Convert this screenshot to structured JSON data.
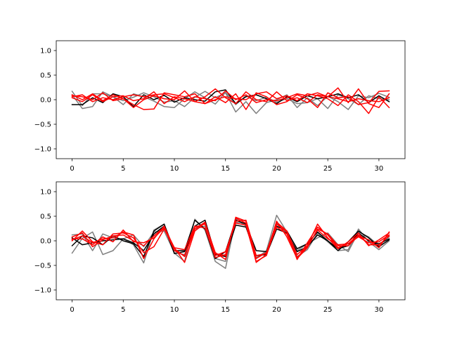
{
  "chart_data": [
    {
      "type": "line",
      "title": "",
      "xlabel": "",
      "ylabel": "",
      "xlim": [
        -1.55,
        32.55
      ],
      "ylim": [
        -1.2,
        1.2
      ],
      "xticks": [
        "0",
        "5",
        "10",
        "15",
        "20",
        "25",
        "30"
      ],
      "yticks": [
        "1.0",
        "0.5",
        "0.0",
        "−0.5",
        "−1.0"
      ],
      "grid": false,
      "legend": "none",
      "x": [
        0,
        1,
        2,
        3,
        4,
        5,
        6,
        7,
        8,
        9,
        10,
        11,
        12,
        13,
        14,
        15,
        16,
        17,
        18,
        19,
        20,
        21,
        22,
        23,
        24,
        25,
        26,
        27,
        28,
        29,
        30,
        31
      ],
      "series": [
        {
          "color": "#7f7f7f",
          "values": [
            0.17,
            -0.12,
            0.12,
            0.12,
            0.06,
            -0.02,
            0.05,
            0.14,
            0.06,
            -0.05,
            -0.02,
            -0.14,
            0.05,
            0.17,
            0.04,
            0.14,
            -0.25,
            -0.04,
            -0.28,
            -0.06,
            0.0,
            0.1,
            -0.16,
            0.04,
            -0.12,
            0.07,
            -0.04,
            -0.2,
            0.08,
            0.04,
            0.13,
            0.05
          ]
        },
        {
          "color": "#7f7f7f",
          "values": [
            0.1,
            -0.18,
            -0.14,
            0.16,
            0.06,
            -0.1,
            0.12,
            0.06,
            -0.03,
            -0.14,
            -0.16,
            0.02,
            0.16,
            0.04,
            -0.09,
            0.15,
            -0.1,
            0.08,
            -0.02,
            0.05,
            -0.05,
            0.02,
            -0.08,
            -0.06,
            0.02,
            -0.18,
            0.1,
            0.02,
            -0.1,
            0.08,
            0.02,
            0.0
          ]
        },
        {
          "color": "#000000",
          "values": [
            -0.1,
            -0.1,
            0.04,
            -0.06,
            0.12,
            0.06,
            -0.14,
            0.1,
            0.0,
            0.09,
            -0.05,
            0.04,
            0.0,
            -0.03,
            0.16,
            0.2,
            -0.08,
            0.06,
            0.1,
            0.02,
            -0.08,
            0.06,
            -0.04,
            0.08,
            0.02,
            0.06,
            0.12,
            0.04,
            0.1,
            -0.06,
            0.08,
            -0.04
          ]
        },
        {
          "color": "#ff0000",
          "values": [
            0.08,
            0.06,
            0.0,
            0.14,
            -0.02,
            0.02,
            -0.1,
            -0.2,
            -0.19,
            0.14,
            0.1,
            0.06,
            0.12,
            -0.08,
            0.06,
            -0.06,
            0.12,
            -0.2,
            0.14,
            0.06,
            -0.1,
            -0.04,
            0.1,
            0.02,
            -0.16,
            0.14,
            0.04,
            0.06,
            -0.1,
            -0.06,
            0.17,
            0.18
          ]
        },
        {
          "color": "#ff0000",
          "values": [
            0.04,
            -0.04,
            0.1,
            -0.04,
            0.06,
            0.08,
            -0.02,
            0.02,
            0.16,
            -0.08,
            0.06,
            0.02,
            -0.04,
            0.06,
            0.22,
            0.04,
            -0.08,
            0.16,
            0.0,
            -0.04,
            0.16,
            -0.02,
            0.04,
            -0.06,
            0.1,
            0.06,
            0.24,
            -0.06,
            0.22,
            -0.08,
            -0.16,
            0.12
          ]
        },
        {
          "color": "#ff0000",
          "values": [
            0.1,
            0.0,
            0.12,
            -0.02,
            0.1,
            0.02,
            -0.16,
            0.0,
            0.08,
            0.02,
            0.0,
            0.18,
            -0.04,
            -0.08,
            0.0,
            0.06,
            0.02,
            0.0,
            0.12,
            0.16,
            0.02,
            0.08,
            -0.02,
            0.12,
            0.08,
            0.02,
            -0.12,
            0.1,
            -0.04,
            -0.28,
            0.06,
            -0.16
          ]
        },
        {
          "color": "#ff0000",
          "values": [
            0.06,
            0.1,
            -0.04,
            0.04,
            0.0,
            0.06,
            0.1,
            0.06,
            0.1,
            0.12,
            0.04,
            -0.04,
            0.06,
            0.02,
            -0.02,
            0.18,
            0.0,
            0.1,
            -0.06,
            0.0,
            -0.02,
            0.04,
            0.12,
            0.08,
            0.14,
            0.06,
            0.02,
            -0.04,
            0.02,
            -0.02,
            -0.04,
            0.04
          ]
        }
      ]
    },
    {
      "type": "line",
      "title": "",
      "xlabel": "",
      "ylabel": "",
      "xlim": [
        -1.55,
        32.55
      ],
      "ylim": [
        -1.2,
        1.2
      ],
      "xticks": [
        "0",
        "5",
        "10",
        "15",
        "20",
        "25",
        "30"
      ],
      "yticks": [
        "1.0",
        "0.5",
        "0.0",
        "−0.5",
        "−1.0"
      ],
      "grid": false,
      "legend": "none",
      "x": [
        0,
        1,
        2,
        3,
        4,
        5,
        6,
        7,
        8,
        9,
        10,
        11,
        12,
        13,
        14,
        15,
        16,
        17,
        18,
        19,
        20,
        21,
        22,
        23,
        24,
        25,
        26,
        27,
        28,
        29,
        30,
        31
      ],
      "series": [
        {
          "color": "#7f7f7f",
          "values": [
            -0.25,
            0.05,
            0.18,
            -0.28,
            -0.2,
            0.04,
            -0.08,
            -0.45,
            0.22,
            0.34,
            -0.25,
            -0.42,
            0.44,
            0.22,
            -0.42,
            -0.56,
            0.44,
            0.3,
            -0.36,
            -0.2,
            0.52,
            0.18,
            -0.32,
            -0.18,
            0.16,
            -0.02,
            -0.2,
            -0.18,
            0.24,
            -0.02,
            -0.18,
            0.0
          ]
        },
        {
          "color": "#7f7f7f",
          "values": [
            0.12,
            0.14,
            -0.2,
            0.14,
            0.06,
            0.04,
            0.12,
            -0.12,
            0.18,
            0.2,
            -0.24,
            -0.28,
            0.24,
            0.3,
            -0.36,
            -0.42,
            0.38,
            0.36,
            -0.34,
            -0.22,
            0.36,
            0.14,
            -0.2,
            -0.06,
            0.06,
            0.16,
            -0.08,
            -0.22,
            0.18,
            0.08,
            -0.1,
            0.08
          ]
        },
        {
          "color": "#000000",
          "values": [
            -0.1,
            0.1,
            0.06,
            -0.08,
            0.1,
            0.0,
            -0.06,
            -0.32,
            0.2,
            0.34,
            -0.2,
            -0.2,
            0.42,
            0.24,
            -0.36,
            -0.22,
            0.42,
            0.34,
            -0.2,
            -0.22,
            0.3,
            0.2,
            -0.16,
            -0.06,
            0.18,
            0.0,
            -0.2,
            -0.02,
            0.2,
            0.06,
            -0.12,
            0.02
          ]
        },
        {
          "color": "#000000",
          "values": [
            0.06,
            -0.08,
            -0.04,
            0.0,
            0.02,
            0.04,
            -0.04,
            -0.2,
            0.14,
            0.3,
            -0.26,
            -0.22,
            0.3,
            0.42,
            -0.28,
            -0.32,
            0.32,
            0.28,
            -0.3,
            -0.28,
            0.24,
            0.16,
            -0.22,
            -0.12,
            0.12,
            0.0,
            -0.16,
            -0.1,
            0.16,
            0.0,
            -0.06,
            0.04
          ]
        },
        {
          "color": "#ff0000",
          "values": [
            0.0,
            0.2,
            -0.02,
            -0.08,
            0.14,
            0.16,
            0.06,
            -0.24,
            -0.12,
            0.24,
            -0.14,
            -0.44,
            0.2,
            0.36,
            -0.24,
            -0.38,
            0.48,
            0.4,
            -0.44,
            -0.28,
            0.4,
            0.08,
            -0.36,
            -0.14,
            0.24,
            0.14,
            -0.1,
            -0.1,
            0.1,
            0.02,
            -0.14,
            0.18
          ]
        },
        {
          "color": "#ff0000",
          "values": [
            0.02,
            0.1,
            -0.04,
            0.04,
            0.06,
            0.18,
            0.12,
            -0.36,
            0.04,
            0.3,
            -0.16,
            -0.32,
            0.24,
            0.38,
            -0.3,
            -0.22,
            0.36,
            0.32,
            -0.42,
            -0.3,
            0.34,
            0.18,
            -0.38,
            -0.04,
            0.28,
            0.12,
            -0.14,
            -0.06,
            0.08,
            -0.04,
            -0.02,
            0.12
          ]
        },
        {
          "color": "#ff0000",
          "values": [
            0.04,
            0.04,
            -0.08,
            0.08,
            -0.02,
            0.22,
            -0.02,
            -0.04,
            0.06,
            0.26,
            -0.2,
            -0.3,
            0.28,
            0.34,
            -0.26,
            -0.3,
            0.46,
            0.36,
            -0.36,
            -0.24,
            0.38,
            0.2,
            -0.28,
            -0.1,
            0.34,
            0.06,
            -0.16,
            -0.02,
            0.16,
            -0.1,
            0.02,
            0.16
          ]
        },
        {
          "color": "#ff0000",
          "values": [
            0.08,
            0.16,
            -0.12,
            0.02,
            0.1,
            0.12,
            0.0,
            -0.1,
            0.1,
            0.28,
            -0.14,
            -0.18,
            0.3,
            0.26,
            -0.34,
            -0.28,
            0.4,
            0.42,
            -0.3,
            -0.26,
            0.28,
            0.14,
            -0.34,
            -0.12,
            0.22,
            0.04,
            -0.08,
            -0.06,
            0.12,
            -0.08,
            -0.08,
            0.1
          ]
        }
      ]
    }
  ]
}
